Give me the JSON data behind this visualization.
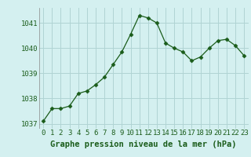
{
  "x": [
    0,
    1,
    2,
    3,
    4,
    5,
    6,
    7,
    8,
    9,
    10,
    11,
    12,
    13,
    14,
    15,
    16,
    17,
    18,
    19,
    20,
    21,
    22,
    23
  ],
  "y": [
    1037.1,
    1037.6,
    1037.6,
    1037.7,
    1038.2,
    1038.3,
    1038.55,
    1038.85,
    1039.35,
    1039.85,
    1040.55,
    1041.3,
    1041.2,
    1041.0,
    1040.2,
    1040.0,
    1039.85,
    1039.5,
    1039.65,
    1040.0,
    1040.3,
    1040.35,
    1040.1,
    1039.7
  ],
  "line_color": "#1a5c1a",
  "marker": "D",
  "marker_size": 2.5,
  "bg_color": "#d4f0f0",
  "grid_color": "#b0d4d4",
  "xlabel": "Graphe pression niveau de la mer (hPa)",
  "xlabel_fontsize": 7.5,
  "tick_label_color": "#1a5c1a",
  "tick_fontsize": 6.5,
  "ylim": [
    1036.8,
    1041.6
  ],
  "yticks": [
    1037,
    1038,
    1039,
    1040,
    1041
  ],
  "xticks": [
    0,
    1,
    2,
    3,
    4,
    5,
    6,
    7,
    8,
    9,
    10,
    11,
    12,
    13,
    14,
    15,
    16,
    17,
    18,
    19,
    20,
    21,
    22,
    23
  ]
}
